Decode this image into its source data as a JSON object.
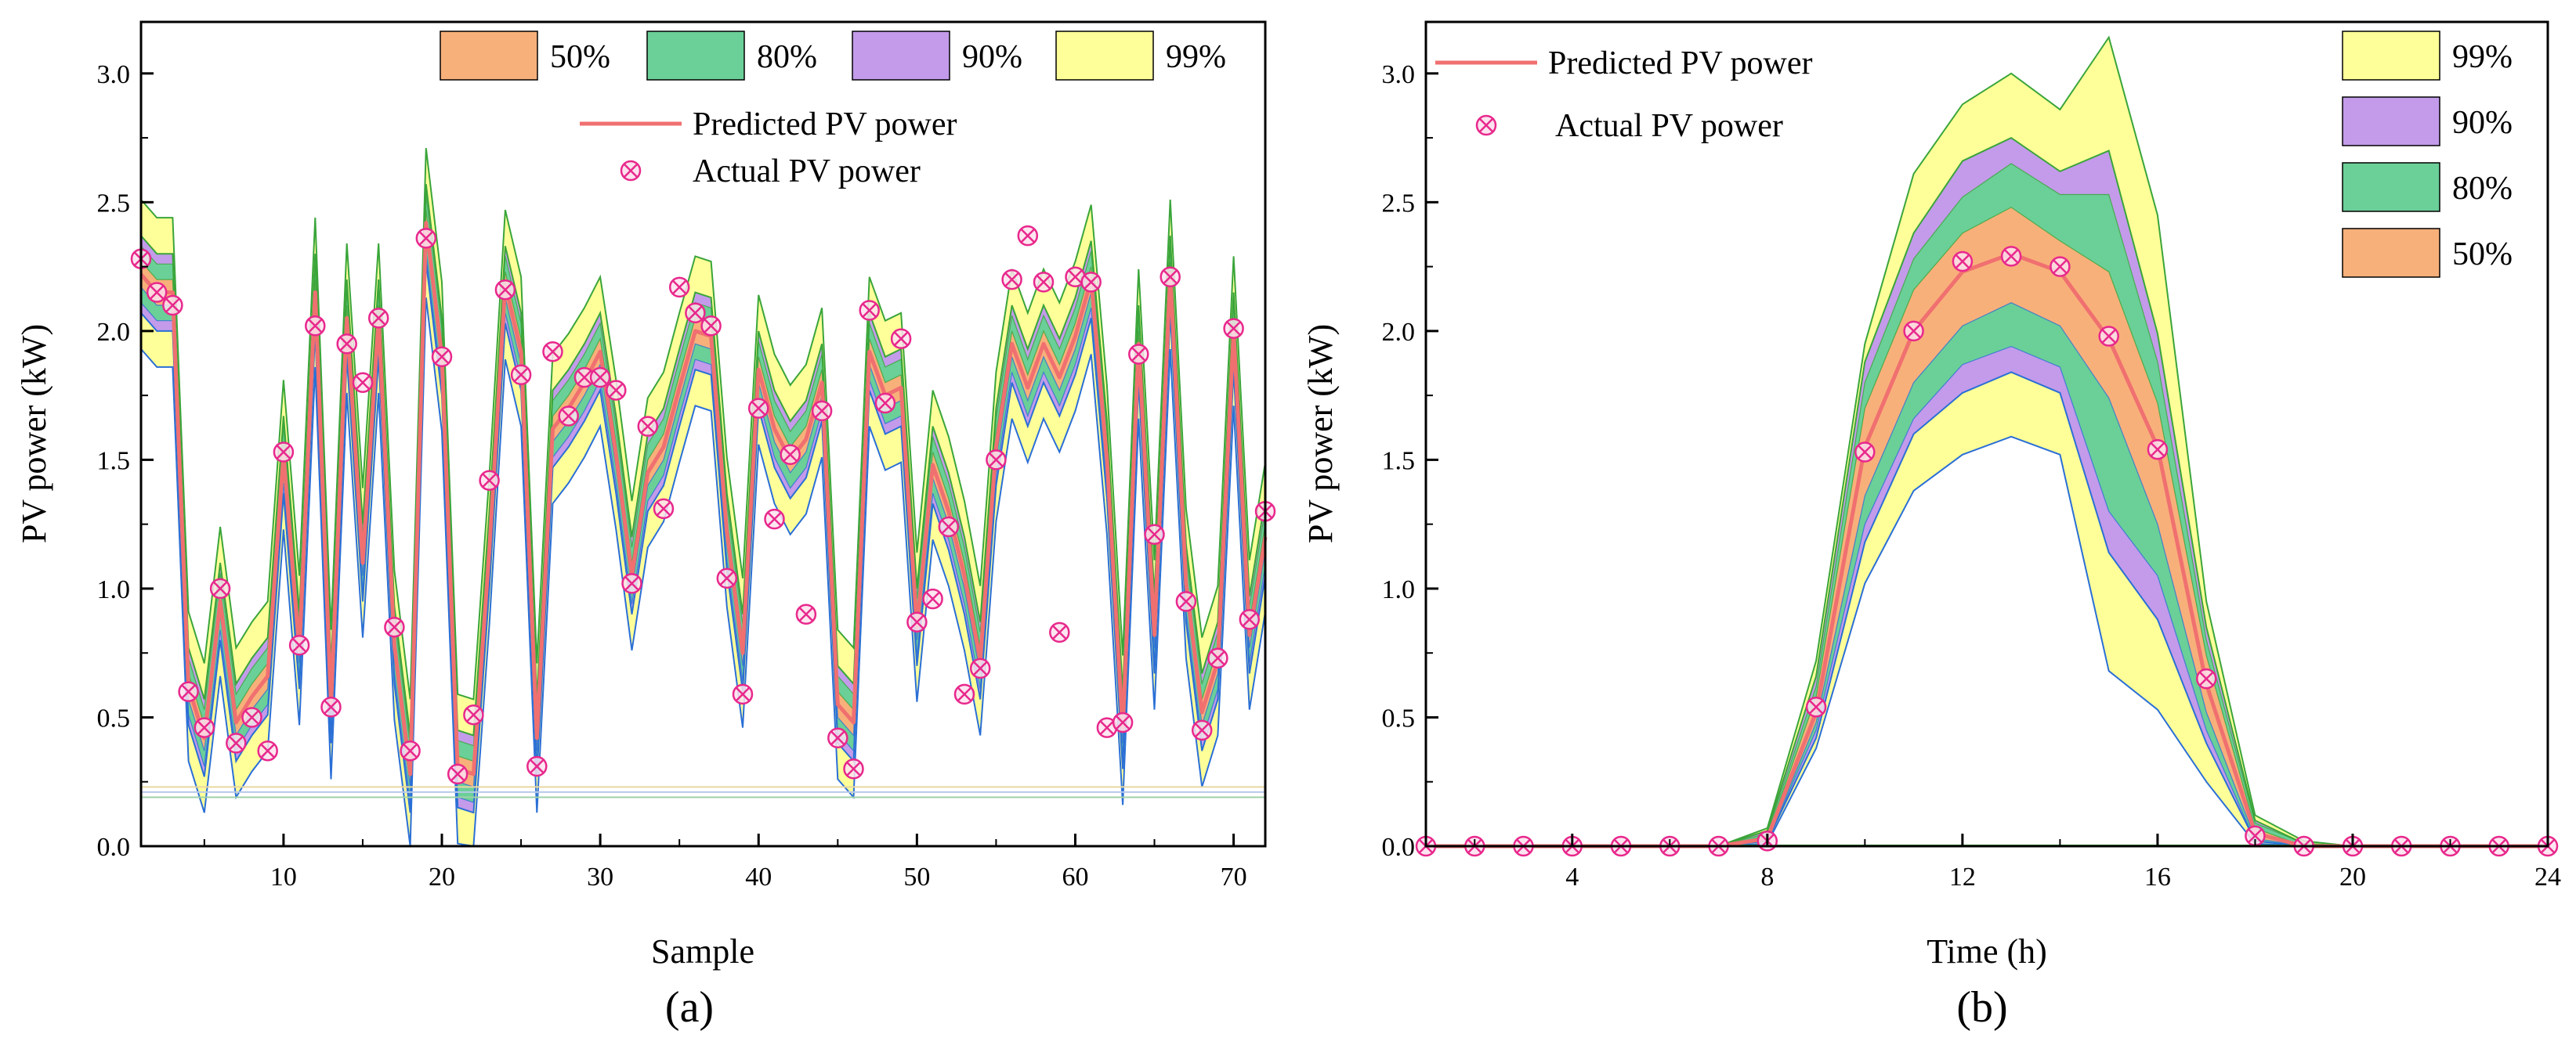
{
  "chart_data": [
    {
      "type": "area",
      "id": "a",
      "panel_label": "(a)",
      "xlabel": "Sample",
      "ylabel": "PV power (kW)",
      "xlim": [
        1,
        72
      ],
      "ylim": [
        0,
        3.2
      ],
      "xticks": [
        10,
        20,
        30,
        40,
        50,
        60,
        70
      ],
      "yticks": [
        0.0,
        0.5,
        1.0,
        1.5,
        2.0,
        2.5,
        3.0
      ],
      "ytick_labels": [
        "0.0",
        "0.5",
        "1.0",
        "1.5",
        "2.0",
        "2.5",
        "3.0"
      ],
      "legend": {
        "intervals": [
          {
            "label": "50%",
            "color": "#f8b07a"
          },
          {
            "label": "80%",
            "color": "#6bcf98"
          },
          {
            "label": "90%",
            "color": "#c39bea"
          },
          {
            "label": "99%",
            "color": "#ffff99"
          }
        ],
        "predicted_label": "Predicted PV power",
        "actual_label": "Actual PV power"
      },
      "x": [
        1,
        2,
        3,
        4,
        5,
        6,
        7,
        8,
        9,
        10,
        11,
        12,
        13,
        14,
        15,
        16,
        17,
        18,
        19,
        20,
        21,
        22,
        23,
        24,
        25,
        26,
        27,
        28,
        29,
        30,
        31,
        32,
        33,
        34,
        35,
        36,
        37,
        38,
        39,
        40,
        41,
        42,
        43,
        44,
        45,
        46,
        47,
        48,
        49,
        50,
        51,
        52,
        53,
        54,
        55,
        56,
        57,
        58,
        59,
        60,
        61,
        62,
        63,
        64,
        65,
        66,
        67,
        68,
        69,
        70,
        71,
        72
      ],
      "predicted": [
        2.22,
        2.15,
        2.15,
        0.62,
        0.42,
        0.95,
        0.48,
        0.58,
        0.66,
        1.52,
        0.76,
        2.15,
        0.55,
        2.05,
        1.1,
        2.05,
        0.78,
        0.28,
        2.42,
        1.9,
        0.3,
        0.28,
        1.15,
        2.18,
        1.92,
        0.42,
        1.62,
        1.7,
        1.8,
        1.92,
        1.52,
        1.05,
        1.45,
        1.55,
        1.78,
        2.0,
        1.98,
        1.22,
        0.75,
        1.85,
        1.62,
        1.5,
        1.58,
        1.8,
        0.55,
        0.48,
        1.92,
        1.75,
        1.78,
        0.85,
        1.48,
        1.3,
        1.05,
        0.72,
        1.55,
        1.95,
        1.78,
        1.95,
        1.82,
        1.98,
        2.2,
        1.5,
        0.45,
        1.95,
        0.82,
        2.22,
        1.02,
        0.52,
        0.72,
        2.0,
        0.82,
        1.2
      ],
      "actual": [
        2.28,
        2.15,
        2.1,
        0.6,
        0.46,
        1.0,
        0.4,
        0.5,
        0.37,
        1.53,
        0.78,
        2.02,
        0.54,
        1.95,
        1.8,
        2.05,
        0.85,
        0.37,
        2.36,
        1.9,
        0.28,
        0.51,
        1.42,
        2.16,
        1.83,
        0.31,
        1.92,
        1.67,
        1.82,
        1.82,
        1.77,
        1.02,
        1.63,
        1.31,
        2.17,
        2.07,
        2.02,
        1.04,
        0.59,
        1.7,
        1.27,
        1.52,
        0.9,
        1.69,
        0.42,
        0.3,
        2.08,
        1.72,
        1.97,
        0.87,
        0.96,
        1.24,
        0.59,
        0.69,
        1.5,
        2.2,
        2.37,
        2.19,
        0.83,
        2.21,
        2.19,
        0.46,
        0.48,
        1.91,
        1.21,
        2.21,
        0.95,
        0.45,
        0.73,
        2.01,
        0.88,
        1.3
      ],
      "band_widths": {
        "50%": 0.05,
        "80%": 0.11,
        "90%": 0.15,
        "99%": 0.29
      }
    },
    {
      "type": "area",
      "id": "b",
      "panel_label": "(b)",
      "xlabel": "Time (h)",
      "ylabel": "PV power (kW)",
      "xlim": [
        1,
        24
      ],
      "ylim": [
        0,
        3.2
      ],
      "xticks": [
        4,
        8,
        12,
        16,
        20,
        24
      ],
      "yticks": [
        0.0,
        0.5,
        1.0,
        1.5,
        2.0,
        2.5,
        3.0
      ],
      "ytick_labels": [
        "0.0",
        "0.5",
        "1.0",
        "1.5",
        "2.0",
        "2.5",
        "3.0"
      ],
      "legend": {
        "predicted_label": "Predicted PV power",
        "actual_label": "Actual PV power",
        "intervals": [
          {
            "label": "99%",
            "color": "#ffff99"
          },
          {
            "label": "90%",
            "color": "#c39bea"
          },
          {
            "label": "80%",
            "color": "#6bcf98"
          },
          {
            "label": "50%",
            "color": "#f8b07a"
          }
        ]
      },
      "x": [
        1,
        2,
        3,
        4,
        5,
        6,
        7,
        8,
        9,
        10,
        11,
        12,
        13,
        14,
        15,
        16,
        17,
        18,
        19,
        20,
        21,
        22,
        23,
        24
      ],
      "predicted": [
        0,
        0,
        0,
        0,
        0,
        0,
        0,
        0.03,
        0.52,
        1.55,
        2.0,
        2.23,
        2.3,
        2.23,
        1.97,
        1.55,
        0.63,
        0.05,
        0,
        0,
        0,
        0,
        0,
        0
      ],
      "actual": [
        0,
        0,
        0,
        0,
        0,
        0,
        0,
        0.02,
        0.54,
        1.53,
        2.0,
        2.27,
        2.29,
        2.25,
        1.98,
        1.54,
        0.65,
        0.04,
        0,
        0,
        0,
        0,
        0,
        0
      ],
      "bands": {
        "99%": {
          "lower": [
            0,
            0,
            0,
            0,
            0,
            0,
            0,
            0.01,
            0.38,
            1.02,
            1.38,
            1.52,
            1.59,
            1.52,
            0.68,
            0.53,
            0.25,
            0.01,
            0,
            0,
            0,
            0,
            0,
            0
          ],
          "upper": [
            0,
            0,
            0,
            0,
            0,
            0,
            0,
            0.07,
            0.72,
            1.95,
            2.61,
            2.88,
            3.0,
            2.86,
            3.14,
            2.45,
            0.95,
            0.12,
            0.02,
            0,
            0,
            0,
            0,
            0
          ]
        },
        "90%": {
          "lower": [
            0,
            0,
            0,
            0,
            0,
            0,
            0,
            0.02,
            0.42,
            1.18,
            1.6,
            1.76,
            1.84,
            1.76,
            1.14,
            0.88,
            0.4,
            0.02,
            0,
            0,
            0,
            0,
            0,
            0
          ],
          "upper": [
            0,
            0,
            0,
            0,
            0,
            0,
            0,
            0.06,
            0.66,
            1.88,
            2.38,
            2.66,
            2.75,
            2.62,
            2.7,
            1.99,
            0.85,
            0.1,
            0.01,
            0,
            0,
            0,
            0,
            0
          ]
        },
        "80%": {
          "lower": [
            0,
            0,
            0,
            0,
            0,
            0,
            0,
            0.02,
            0.45,
            1.25,
            1.66,
            1.87,
            1.94,
            1.86,
            1.3,
            1.05,
            0.45,
            0.02,
            0,
            0,
            0,
            0,
            0,
            0
          ],
          "upper": [
            0,
            0,
            0,
            0,
            0,
            0,
            0,
            0.05,
            0.62,
            1.8,
            2.28,
            2.52,
            2.65,
            2.53,
            2.53,
            1.88,
            0.8,
            0.09,
            0.01,
            0,
            0,
            0,
            0,
            0
          ]
        },
        "50%": {
          "lower": [
            0,
            0,
            0,
            0,
            0,
            0,
            0,
            0.02,
            0.48,
            1.36,
            1.8,
            2.02,
            2.11,
            2.02,
            1.74,
            1.25,
            0.52,
            0.03,
            0,
            0,
            0,
            0,
            0,
            0
          ],
          "upper": [
            0,
            0,
            0,
            0,
            0,
            0,
            0,
            0.04,
            0.58,
            1.7,
            2.16,
            2.38,
            2.48,
            2.35,
            2.23,
            1.72,
            0.74,
            0.07,
            0,
            0,
            0,
            0,
            0,
            0
          ]
        }
      }
    }
  ],
  "colors": {
    "band_99": "#ffff99",
    "band_90": "#c39bea",
    "band_80": "#6bcf98",
    "band_50": "#f8b07a",
    "predicted_line": "#f07070",
    "actual_marker": "#e8288c",
    "outline_green": "#3aa53a",
    "outline_blue": "#2a6fd6"
  }
}
